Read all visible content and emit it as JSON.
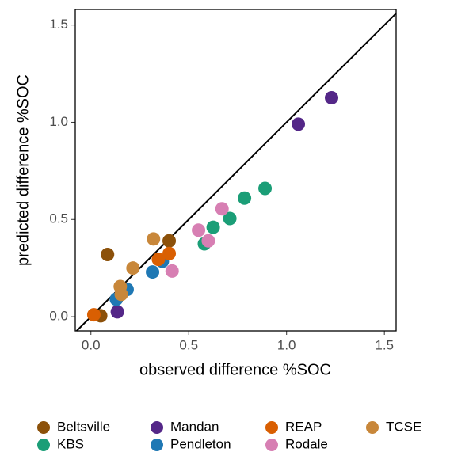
{
  "chart_data": {
    "type": "scatter",
    "xlabel": "observed difference %SOC",
    "ylabel": "predicted difference %SOC",
    "xlim": [
      -0.08,
      1.56
    ],
    "ylim": [
      -0.073,
      1.58
    ],
    "xticks": [
      {
        "value": 0,
        "label": "0.0"
      },
      0.5,
      {
        "value": 1,
        "label": "1.0"
      },
      1.5
    ],
    "yticks": [
      {
        "value": 0,
        "label": "0.0"
      },
      0.5,
      {
        "value": 1,
        "label": "1.0"
      },
      1.5
    ],
    "identity_line": true,
    "legend": "bottom",
    "series": [
      {
        "name": "Beltsville",
        "color": "#8c510a",
        "x": [
          0.085,
          0.05,
          0.4
        ],
        "values": [
          0.32,
          0.005,
          0.39
        ]
      },
      {
        "name": "KBS",
        "color": "#1b9e77",
        "x": [
          0.89,
          0.785,
          0.71,
          0.625,
          0.58
        ],
        "values": [
          0.66,
          0.61,
          0.505,
          0.46,
          0.375
        ]
      },
      {
        "name": "Mandan",
        "color": "#542788",
        "x": [
          1.23,
          1.06,
          0.135
        ],
        "values": [
          1.126,
          0.99,
          0.025
        ]
      },
      {
        "name": "Pendleton",
        "color": "#1f78b4",
        "x": [
          0.315,
          0.185,
          0.13,
          0.365
        ],
        "values": [
          0.23,
          0.14,
          0.09,
          0.285
        ]
      },
      {
        "name": "REAP",
        "color": "#d95f02",
        "x": [
          0.015,
          0.4,
          0.345
        ],
        "values": [
          0.01,
          0.325,
          0.295
        ]
      },
      {
        "name": "Rodale",
        "color": "#d77fb3",
        "x": [
          0.67,
          0.55,
          0.6,
          0.415
        ],
        "values": [
          0.555,
          0.445,
          0.39,
          0.235
        ]
      },
      {
        "name": "TCSE",
        "color": "#c8873a",
        "x": [
          0.32,
          0.215,
          0.15,
          0.155
        ],
        "values": [
          0.4,
          0.25,
          0.155,
          0.115
        ]
      }
    ]
  }
}
